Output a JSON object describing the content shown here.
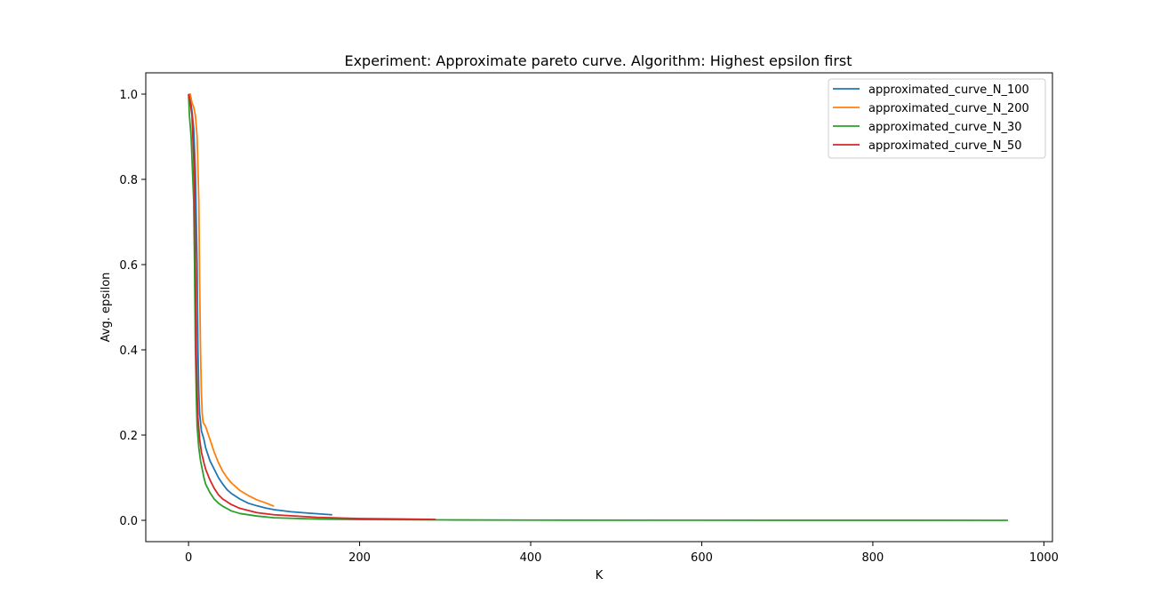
{
  "chart_data": {
    "type": "line",
    "title": "Experiment: Approximate pareto curve. Algorithm: Highest epsilon first",
    "xlabel": "K",
    "ylabel": "Avg. epsilon",
    "xlim": [
      -50,
      1010
    ],
    "ylim": [
      -0.05,
      1.05
    ],
    "xticks": [
      0,
      200,
      400,
      600,
      800,
      1000
    ],
    "yticks": [
      0.0,
      0.2,
      0.4,
      0.6,
      0.8,
      1.0
    ],
    "xtick_labels": [
      "0",
      "200",
      "400",
      "600",
      "800",
      "1000"
    ],
    "ytick_labels": [
      "0.0",
      "0.2",
      "0.4",
      "0.6",
      "0.8",
      "1.0"
    ],
    "grid": false,
    "legend_position": "top-right",
    "series": [
      {
        "name": "approximated_curve_N_100",
        "color": "#1f77b4",
        "points": [
          [
            0,
            1.0
          ],
          [
            2,
            0.99
          ],
          [
            4,
            0.96
          ],
          [
            6,
            0.92
          ],
          [
            8,
            0.82
          ],
          [
            10,
            0.6
          ],
          [
            11,
            0.4
          ],
          [
            12,
            0.3
          ],
          [
            13,
            0.25
          ],
          [
            15,
            0.21
          ],
          [
            18,
            0.19
          ],
          [
            20,
            0.17
          ],
          [
            25,
            0.14
          ],
          [
            30,
            0.12
          ],
          [
            35,
            0.1
          ],
          [
            40,
            0.085
          ],
          [
            45,
            0.072
          ],
          [
            50,
            0.063
          ],
          [
            60,
            0.05
          ],
          [
            70,
            0.04
          ],
          [
            80,
            0.034
          ],
          [
            90,
            0.029
          ],
          [
            100,
            0.025
          ],
          [
            120,
            0.02
          ],
          [
            140,
            0.017
          ],
          [
            160,
            0.014
          ],
          [
            168,
            0.013
          ]
        ]
      },
      {
        "name": "approximated_curve_N_200",
        "color": "#ff7f0e",
        "points": [
          [
            0,
            1.0
          ],
          [
            2,
            1.0
          ],
          [
            4,
            0.98
          ],
          [
            6,
            0.97
          ],
          [
            8,
            0.95
          ],
          [
            10,
            0.9
          ],
          [
            12,
            0.75
          ],
          [
            13,
            0.55
          ],
          [
            14,
            0.4
          ],
          [
            15,
            0.3
          ],
          [
            16,
            0.25
          ],
          [
            17,
            0.23
          ],
          [
            20,
            0.22
          ],
          [
            25,
            0.19
          ],
          [
            30,
            0.16
          ],
          [
            35,
            0.135
          ],
          [
            40,
            0.115
          ],
          [
            45,
            0.1
          ],
          [
            50,
            0.088
          ],
          [
            60,
            0.07
          ],
          [
            70,
            0.058
          ],
          [
            80,
            0.048
          ],
          [
            90,
            0.041
          ],
          [
            100,
            0.033
          ]
        ]
      },
      {
        "name": "approximated_curve_N_30",
        "color": "#2ca02c",
        "points": [
          [
            0,
            1.0
          ],
          [
            1,
            0.95
          ],
          [
            3,
            0.9
          ],
          [
            5,
            0.8
          ],
          [
            6,
            0.75
          ],
          [
            7,
            0.6
          ],
          [
            8,
            0.4
          ],
          [
            9,
            0.3
          ],
          [
            10,
            0.22
          ],
          [
            12,
            0.17
          ],
          [
            14,
            0.14
          ],
          [
            16,
            0.12
          ],
          [
            18,
            0.1
          ],
          [
            20,
            0.085
          ],
          [
            25,
            0.065
          ],
          [
            30,
            0.05
          ],
          [
            35,
            0.04
          ],
          [
            40,
            0.033
          ],
          [
            50,
            0.022
          ],
          [
            60,
            0.016
          ],
          [
            80,
            0.01
          ],
          [
            100,
            0.006
          ],
          [
            150,
            0.003
          ],
          [
            200,
            0.002
          ],
          [
            300,
            0.001
          ],
          [
            400,
            0.0005
          ],
          [
            600,
            0.0002
          ],
          [
            800,
            0.0001
          ],
          [
            958,
            0.0
          ]
        ]
      },
      {
        "name": "approximated_curve_N_50",
        "color": "#d62728",
        "points": [
          [
            0,
            1.0
          ],
          [
            2,
            0.98
          ],
          [
            4,
            0.95
          ],
          [
            5,
            0.9
          ],
          [
            6,
            0.85
          ],
          [
            7,
            0.78
          ],
          [
            8,
            0.6
          ],
          [
            9,
            0.4
          ],
          [
            10,
            0.3
          ],
          [
            11,
            0.24
          ],
          [
            13,
            0.19
          ],
          [
            15,
            0.16
          ],
          [
            18,
            0.135
          ],
          [
            20,
            0.12
          ],
          [
            25,
            0.095
          ],
          [
            30,
            0.075
          ],
          [
            35,
            0.06
          ],
          [
            40,
            0.05
          ],
          [
            50,
            0.037
          ],
          [
            60,
            0.028
          ],
          [
            80,
            0.018
          ],
          [
            100,
            0.013
          ],
          [
            150,
            0.007
          ],
          [
            200,
            0.004
          ],
          [
            250,
            0.003
          ],
          [
            289,
            0.002
          ]
        ]
      }
    ]
  }
}
